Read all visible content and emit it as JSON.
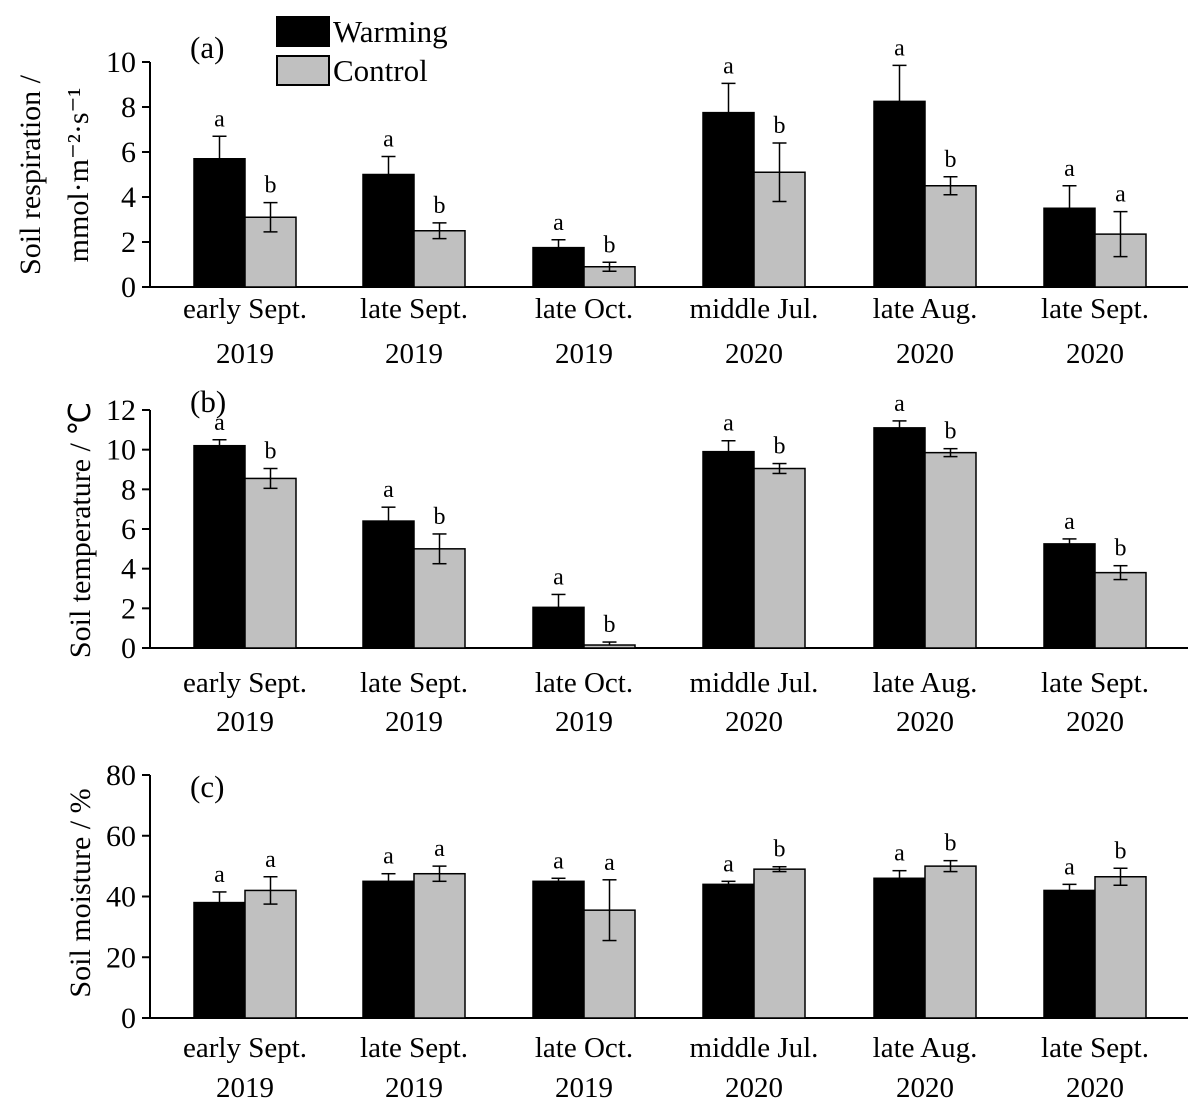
{
  "chart_data": [
    {
      "type": "bar",
      "panel_label": "(a)",
      "ylabel": "Soil respiration / mmol·m⁻²·s⁻¹",
      "ylabel_line1": "Soil respiration /",
      "ylabel_line2": "mmol·m⁻²·s⁻¹",
      "ylim": [
        0,
        10
      ],
      "yticks": [
        0,
        2,
        4,
        6,
        8,
        10
      ],
      "categories": [
        [
          "early Sept.",
          "2019"
        ],
        [
          "late Sept.",
          "2019"
        ],
        [
          "late Oct.",
          "2019"
        ],
        [
          "middle Jul.",
          "2020"
        ],
        [
          "late Aug.",
          "2020"
        ],
        [
          "late Sept.",
          "2020"
        ]
      ],
      "legend": [
        "Warming",
        "Control"
      ],
      "series": [
        {
          "name": "Warming",
          "color": "#000000",
          "values": [
            5.7,
            5.0,
            1.75,
            7.75,
            8.25,
            3.5
          ],
          "errors": [
            1.0,
            0.8,
            0.35,
            1.3,
            1.6,
            1.0
          ],
          "letters": [
            "a",
            "a",
            "a",
            "a",
            "a",
            "a"
          ]
        },
        {
          "name": "Control",
          "color": "#c0c0c0",
          "values": [
            3.1,
            2.5,
            0.9,
            5.1,
            4.5,
            2.35
          ],
          "errors": [
            0.65,
            0.35,
            0.2,
            1.3,
            0.4,
            1.0
          ],
          "letters": [
            "b",
            "b",
            "b",
            "b",
            "b",
            "a"
          ]
        }
      ]
    },
    {
      "type": "bar",
      "panel_label": "(b)",
      "ylabel": "Soil temperature / ℃",
      "ylim": [
        0,
        12
      ],
      "yticks": [
        0,
        2,
        4,
        6,
        8,
        10,
        12
      ],
      "categories": [
        [
          "early Sept.",
          "2019"
        ],
        [
          "late Sept.",
          "2019"
        ],
        [
          "late Oct.",
          "2019"
        ],
        [
          "middle Jul.",
          "2020"
        ],
        [
          "late Aug.",
          "2020"
        ],
        [
          "late Sept.",
          "2020"
        ]
      ],
      "series": [
        {
          "name": "Warming",
          "color": "#000000",
          "values": [
            10.2,
            6.4,
            2.05,
            9.9,
            11.1,
            5.25
          ],
          "errors": [
            0.3,
            0.7,
            0.65,
            0.55,
            0.35,
            0.25
          ],
          "letters": [
            "a",
            "a",
            "a",
            "a",
            "a",
            "a"
          ]
        },
        {
          "name": "Control",
          "color": "#c0c0c0",
          "values": [
            8.55,
            5.0,
            0.15,
            9.05,
            9.85,
            3.8
          ],
          "errors": [
            0.5,
            0.75,
            0.15,
            0.25,
            0.2,
            0.35
          ],
          "letters": [
            "b",
            "b",
            "b",
            "b",
            "b",
            "b"
          ]
        }
      ]
    },
    {
      "type": "bar",
      "panel_label": "(c)",
      "ylabel": "Soil moisture / %",
      "ylim": [
        0,
        80
      ],
      "yticks": [
        0,
        20,
        40,
        60,
        80
      ],
      "categories": [
        [
          "early Sept.",
          "2019"
        ],
        [
          "late Sept.",
          "2019"
        ],
        [
          "late Oct.",
          "2019"
        ],
        [
          "middle Jul.",
          "2020"
        ],
        [
          "late Aug.",
          "2020"
        ],
        [
          "late Sept.",
          "2020"
        ]
      ],
      "series": [
        {
          "name": "Warming",
          "color": "#000000",
          "values": [
            38.0,
            45.0,
            45.0,
            44.0,
            46.0,
            42.0
          ],
          "errors": [
            3.5,
            2.5,
            1.0,
            1.0,
            2.5,
            2.0
          ],
          "letters": [
            "a",
            "a",
            "a",
            "a",
            "a",
            "a"
          ]
        },
        {
          "name": "Control",
          "color": "#c0c0c0",
          "values": [
            42.0,
            47.5,
            35.5,
            49.0,
            50.0,
            46.5
          ],
          "errors": [
            4.5,
            2.5,
            10.0,
            0.8,
            1.8,
            2.8
          ],
          "letters": [
            "a",
            "a",
            "a",
            "b",
            "b",
            "b"
          ]
        }
      ]
    }
  ]
}
